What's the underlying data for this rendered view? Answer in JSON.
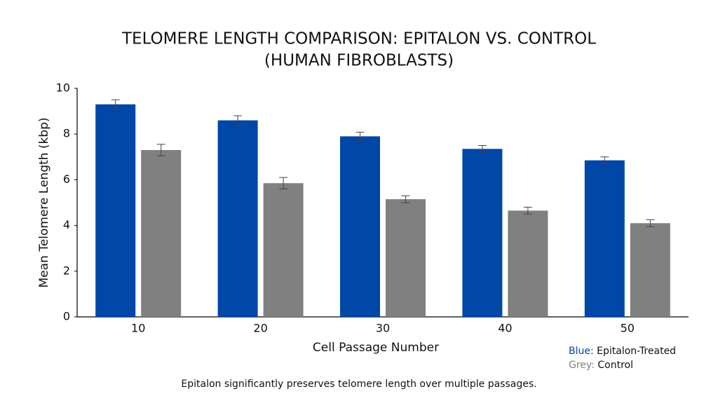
{
  "chart_data": {
    "type": "bar",
    "title": [
      "TELOMERE LENGTH COMPARISON: EPITALON VS. CONTROL",
      "(HUMAN FIBROBLASTS)"
    ],
    "x_label": "Cell Passage Number",
    "y_label": "Mean Telomere Length (kbp)",
    "categories": [
      "10",
      "20",
      "30",
      "40",
      "50"
    ],
    "series": [
      {
        "name": "Epitalon-Treated",
        "legend_prefix": "Blue:",
        "color": "#0047a8",
        "values": [
          9.3,
          8.6,
          7.9,
          7.35,
          6.85
        ],
        "errors": [
          0.2,
          0.2,
          0.18,
          0.15,
          0.15
        ]
      },
      {
        "name": "Control",
        "legend_prefix": "Grey:",
        "color": "#808080",
        "values": [
          7.3,
          5.85,
          5.15,
          4.65,
          4.1
        ],
        "errors": [
          0.25,
          0.25,
          0.15,
          0.15,
          0.15
        ]
      }
    ],
    "ylim": [
      0,
      10
    ],
    "yticks": [
      0,
      2,
      4,
      6,
      8,
      10
    ],
    "grid": false,
    "caption": "Epitalon significantly preserves telomere length over multiple passages."
  }
}
